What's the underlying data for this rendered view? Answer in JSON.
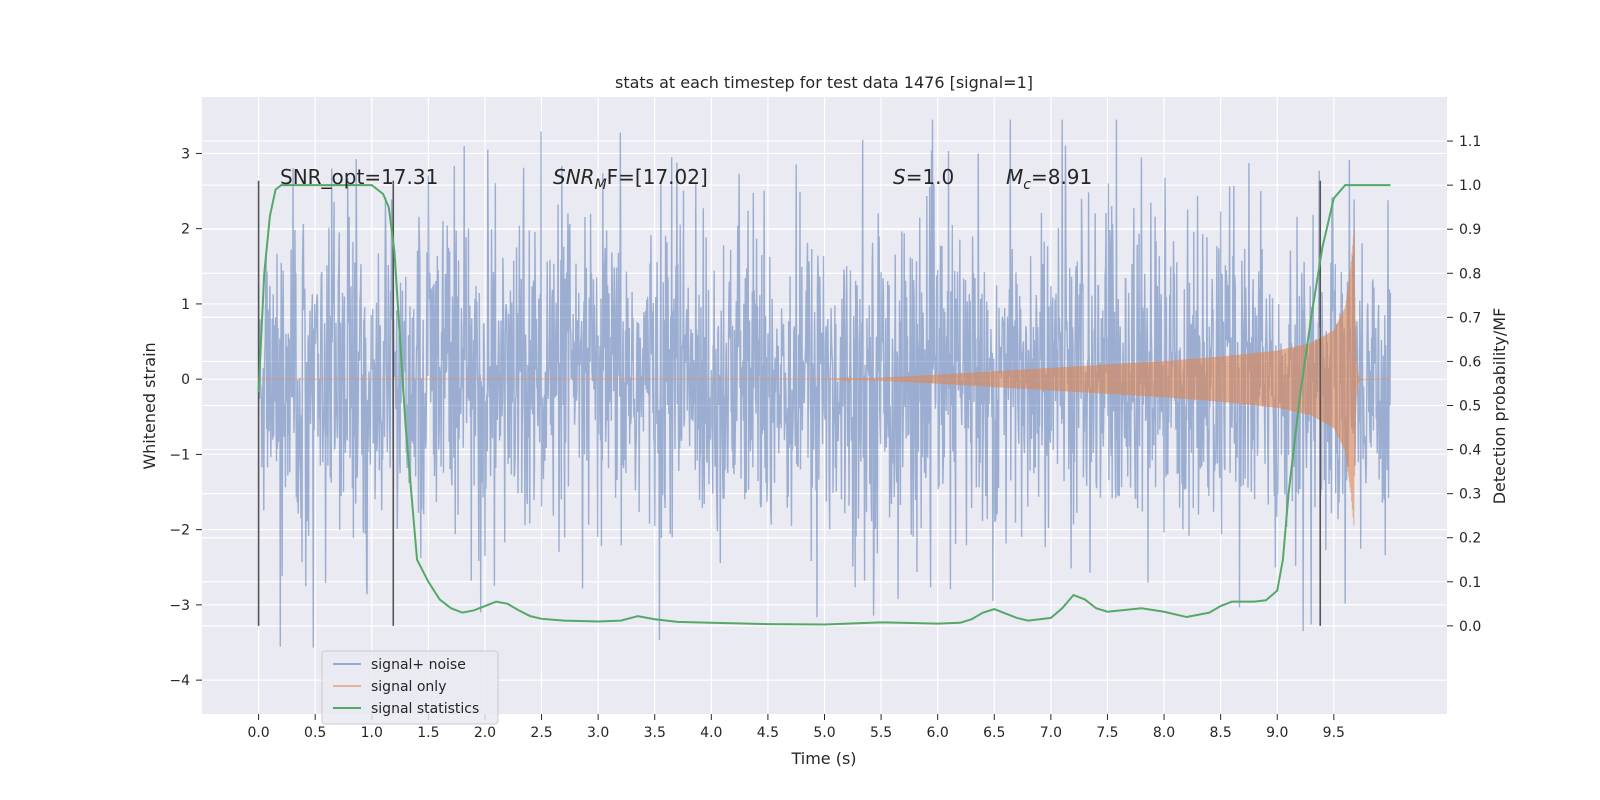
{
  "chart_data": {
    "type": "line",
    "title": "stats at each timestep for test data 1476 [signal=1]",
    "xlabel": "Time (s)",
    "ylabel_left": "Whitened strain",
    "ylabel_right": "Detection probability/MF",
    "xlim": [
      -0.5,
      10.5
    ],
    "ylim_left": [
      -4.45,
      3.75
    ],
    "ylim_right": [
      -0.2,
      1.2
    ],
    "x_ticks": [
      "0.0",
      "0.5",
      "1.0",
      "1.5",
      "2.0",
      "2.5",
      "3.0",
      "3.5",
      "4.0",
      "4.5",
      "5.0",
      "5.5",
      "6.0",
      "6.5",
      "7.0",
      "7.5",
      "8.0",
      "8.5",
      "9.0",
      "9.5"
    ],
    "y_left_ticks": [
      "3",
      "2",
      "1",
      "0",
      "−1",
      "−2",
      "−3",
      "−4"
    ],
    "y_right_ticks": [
      "1.1",
      "1.0",
      "0.9",
      "0.8",
      "0.7",
      "0.6",
      "0.5",
      "0.4",
      "0.3",
      "0.2",
      "0.1",
      "0.0"
    ],
    "grid": true,
    "background": "#eaeaf2",
    "legend_position": "lower-left",
    "annotations": [
      {
        "id": "snr-opt",
        "text": "SNR_opt=17.31",
        "x": 0.2,
        "y": 2.75
      },
      {
        "id": "snr-mf-a",
        "text": "SNR",
        "x": 2.6,
        "y": 2.75
      },
      {
        "id": "snr-mf-sub",
        "text": "M",
        "x": 2.6,
        "y": 2.75
      },
      {
        "id": "snr-mf-b",
        "text": "F=[17.02]",
        "x": 2.6,
        "y": 2.75
      },
      {
        "id": "s-sym",
        "text": "S",
        "x": 5.6,
        "y": 2.75
      },
      {
        "id": "s-val",
        "text": "=1.0",
        "x": 5.6,
        "y": 2.75
      },
      {
        "id": "mc-sym",
        "text": "M",
        "x": 6.6,
        "y": 2.75
      },
      {
        "id": "mc-sub",
        "text": "c",
        "x": 6.6,
        "y": 2.75
      },
      {
        "id": "mc-val",
        "text": "=8.91",
        "x": 6.6,
        "y": 2.75
      }
    ],
    "vertical_lines_x": [
      0.0,
      1.19,
      9.38
    ],
    "series": [
      {
        "name": "signal+ noise",
        "color": "#4c72b0",
        "kind": "noise",
        "x_range": [
          0.0,
          10.0
        ],
        "typical_amplitude": 1.45,
        "peak_max": 3.45,
        "peak_min": -4.05
      },
      {
        "name": "signal only",
        "color": "#dd8452",
        "kind": "chirp",
        "x_range": [
          0.0,
          9.68
        ],
        "envelope": {
          "x": [
            0.0,
            5.0,
            5.5,
            6.0,
            7.0,
            8.0,
            8.5,
            9.0,
            9.3,
            9.5,
            9.6,
            9.65,
            9.68
          ],
          "a": [
            0.0,
            0.0,
            0.02,
            0.06,
            0.15,
            0.24,
            0.3,
            0.38,
            0.48,
            0.65,
            0.95,
            1.5,
            2.0
          ]
        },
        "ringdown_end": 9.75
      },
      {
        "name": "signal statistics",
        "color": "#55a868",
        "x": [
          0.0,
          0.05,
          0.1,
          0.15,
          0.2,
          0.3,
          0.5,
          0.8,
          1.0,
          1.1,
          1.15,
          1.2,
          1.25,
          1.3,
          1.35,
          1.4,
          1.5,
          1.6,
          1.7,
          1.8,
          1.9,
          2.0,
          2.1,
          2.2,
          2.3,
          2.4,
          2.5,
          2.7,
          3.0,
          3.2,
          3.35,
          3.5,
          3.7,
          4.0,
          4.5,
          5.0,
          5.5,
          6.0,
          6.2,
          6.3,
          6.4,
          6.5,
          6.6,
          6.7,
          6.8,
          7.0,
          7.1,
          7.2,
          7.3,
          7.4,
          7.5,
          7.8,
          8.0,
          8.2,
          8.4,
          8.5,
          8.6,
          8.8,
          8.9,
          9.0,
          9.05,
          9.1,
          9.2,
          9.3,
          9.4,
          9.5,
          9.6,
          9.7,
          10.0
        ],
        "y": [
          0.53,
          0.8,
          0.93,
          0.99,
          1.0,
          1.0,
          1.0,
          1.0,
          1.0,
          0.98,
          0.95,
          0.85,
          0.65,
          0.45,
          0.3,
          0.15,
          0.1,
          0.06,
          0.04,
          0.03,
          0.035,
          0.045,
          0.055,
          0.05,
          0.035,
          0.022,
          0.016,
          0.012,
          0.01,
          0.012,
          0.022,
          0.015,
          0.009,
          0.007,
          0.004,
          0.003,
          0.008,
          0.005,
          0.007,
          0.015,
          0.03,
          0.038,
          0.028,
          0.018,
          0.012,
          0.018,
          0.04,
          0.07,
          0.06,
          0.04,
          0.032,
          0.04,
          0.032,
          0.02,
          0.03,
          0.045,
          0.055,
          0.055,
          0.058,
          0.08,
          0.15,
          0.3,
          0.52,
          0.7,
          0.86,
          0.97,
          1.0,
          1.0,
          1.0
        ]
      }
    ]
  }
}
